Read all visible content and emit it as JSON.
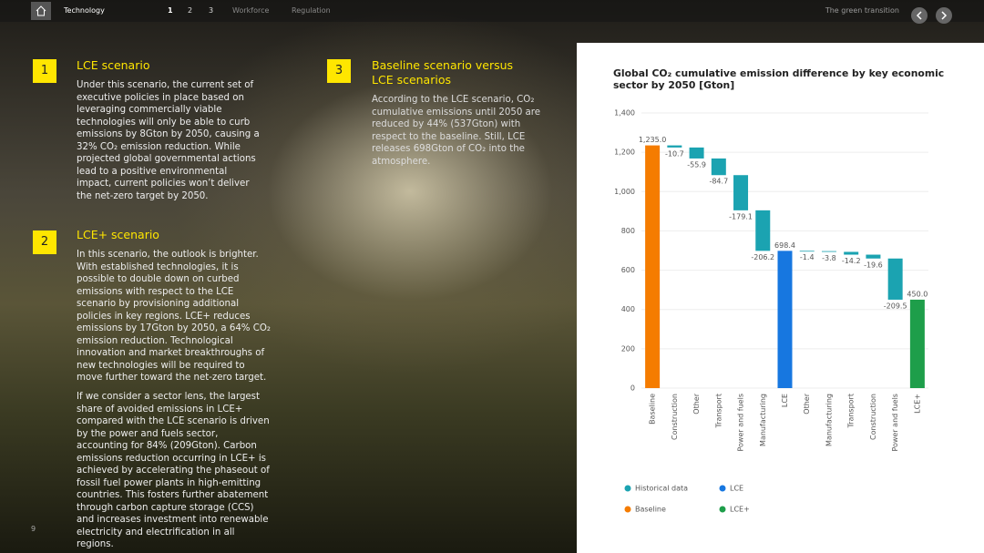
{
  "nav": {
    "section": "Technology",
    "pages": [
      "1",
      "2",
      "3"
    ],
    "links": [
      "Workforce",
      "Regulation"
    ],
    "right": "The green transition"
  },
  "sections": [
    {
      "number": "1",
      "title": "LCE scenario",
      "paragraphs": [
        "Under this scenario, the current set of executive policies in place based on leveraging commercially viable technologies will only be able to curb emissions by 8Gton by 2050, causing a 32% CO₂ emission reduction. While projected global governmental actions lead to a positive environmental impact, current policies won’t deliver the net-zero target by 2050."
      ]
    },
    {
      "number": "2",
      "title": "LCE+ scenario",
      "paragraphs": [
        "In this scenario, the outlook is brighter. With established technologies, it is possible to double down on curbed emissions with respect to the LCE scenario by provisioning additional policies in key regions. LCE+ reduces emissions by 17Gton by 2050, a 64% CO₂ emission reduction. Technological innovation and market breakthroughs of new technologies will be required to move further toward the net-zero target.",
        "If we consider a sector lens, the largest share of avoided emissions in LCE+ compared with the LCE scenario is driven by the power and fuels sector, accounting for 84% (209Gton). Carbon emissions reduction occurring in LCE+ is achieved by accelerating the phaseout of fossil fuel power plants in high-emitting countries. This fosters further abatement through carbon capture storage (CCS) and increases investment into renewable electricity and electrification in all regions."
      ]
    },
    {
      "number": "3",
      "title": "Baseline scenario versus LCE scenarios",
      "paragraphs": [
        "According to the LCE scenario, CO₂ cumulative emissions until 2050 are reduced by 44% (537Gton) with respect to the baseline. Still, LCE releases 698Gton of CO₂ into the atmosphere."
      ]
    }
  ],
  "page_number": "9",
  "chart_data": {
    "type": "waterfall",
    "title": "Global CO₂ cumulative emission difference by key economic sector by 2050 [Gton]",
    "categories": [
      "Baseline",
      "Construction",
      "Other",
      "Transport",
      "Power and fuels",
      "Manufacturing",
      "LCE",
      "Other",
      "Manufacturing",
      "Transport",
      "Construction",
      "Power and fuels",
      "LCE+"
    ],
    "values": [
      1235.0,
      -10.7,
      -55.9,
      -84.7,
      -179.1,
      -206.2,
      698.4,
      -1.4,
      -3.8,
      -14.2,
      -19.6,
      -209.5,
      450.0
    ],
    "value_labels": [
      "1,235.0",
      "-10.7",
      "-55.9",
      "-84.7",
      "-179.1",
      "-206.2",
      "698.4",
      "-1.4",
      "-3.8",
      "-14.2",
      "-19.6",
      "-209.5",
      "450.0"
    ],
    "totals": [
      true,
      false,
      false,
      false,
      false,
      false,
      true,
      false,
      false,
      false,
      false,
      false,
      true
    ],
    "colors": [
      "#f57c00",
      "#1ba3b1",
      "#1ba3b1",
      "#1ba3b1",
      "#1ba3b1",
      "#1ba3b1",
      "#1777e0",
      "#1ba3b1",
      "#1ba3b1",
      "#1ba3b1",
      "#1ba3b1",
      "#1ba3b1",
      "#1e9e4a"
    ],
    "legend": [
      {
        "name": "Historical data",
        "color": "#1ba3b1"
      },
      {
        "name": "LCE",
        "color": "#1777e0"
      },
      {
        "name": "Baseline",
        "color": "#f57c00"
      },
      {
        "name": "LCE+",
        "color": "#1e9e4a"
      }
    ],
    "ylim": [
      0,
      1400
    ],
    "yticks": [
      0,
      200,
      400,
      600,
      800,
      {
        "value": 1000,
        "label": "1,000"
      },
      {
        "value": 1200,
        "label": "1,200"
      },
      {
        "value": 1400,
        "label": "1,400"
      }
    ],
    "grid": true
  }
}
